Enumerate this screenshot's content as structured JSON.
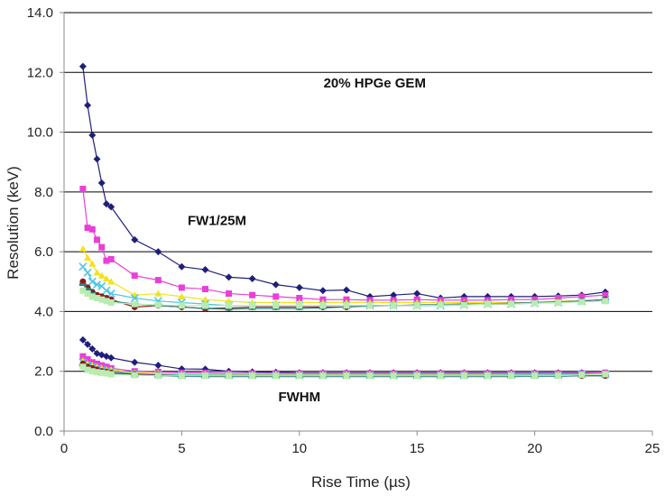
{
  "chart_data": {
    "type": "line",
    "title": "",
    "xlabel": "Rise Time (µs)",
    "ylabel": "Resolution (keV)",
    "xlim": [
      0,
      25
    ],
    "ylim": [
      0,
      14
    ],
    "xticks": [
      0,
      5,
      10,
      15,
      20,
      25
    ],
    "yticks": [
      0,
      2,
      4,
      6,
      8,
      10,
      12,
      14
    ],
    "xtick_labels": [
      "0",
      "5",
      "10",
      "15",
      "20",
      "25"
    ],
    "ytick_labels": [
      "0.0",
      "2.0",
      "4.0",
      "6.0",
      "8.0",
      "10.0",
      "12.0",
      "14.0"
    ],
    "grid": "horizontal",
    "legend": "none",
    "annotations": [
      {
        "text": "20%  HPGe GEM",
        "x": 13.2,
        "y": 11.5
      },
      {
        "text": "FW1/25M",
        "x": 6.5,
        "y": 6.9
      },
      {
        "text": "FWHM",
        "x": 10.0,
        "y": 1.0
      }
    ],
    "series": [
      {
        "group": "FW1/25M",
        "color": "#1f1f7a",
        "marker": "diamond",
        "x": [
          0.8,
          1.0,
          1.2,
          1.4,
          1.6,
          1.8,
          2.0,
          3.0,
          4.0,
          5.0,
          6.0,
          7.0,
          8.0,
          9.0,
          10.0,
          11.0,
          12.0,
          13.0,
          14.0,
          15.0,
          16.0,
          17.0,
          18.0,
          19.0,
          20.0,
          21.0,
          22.0,
          23.0
        ],
        "y": [
          12.2,
          10.9,
          9.9,
          9.1,
          8.3,
          7.6,
          7.5,
          6.4,
          6.0,
          5.5,
          5.4,
          5.15,
          5.1,
          4.9,
          4.8,
          4.7,
          4.72,
          4.5,
          4.55,
          4.6,
          4.45,
          4.5,
          4.5,
          4.5,
          4.5,
          4.52,
          4.55,
          4.65
        ]
      },
      {
        "group": "FW1/25M",
        "color": "#e83fd8",
        "marker": "square",
        "x": [
          0.8,
          1.0,
          1.2,
          1.4,
          1.6,
          1.8,
          2.0,
          3.0,
          4.0,
          5.0,
          6.0,
          7.0,
          8.0,
          9.0,
          10.0,
          11.0,
          12.0,
          13.0,
          14.0,
          15.0,
          16.0,
          17.0,
          18.0,
          19.0,
          20.0,
          21.0,
          22.0,
          23.0
        ],
        "y": [
          8.1,
          6.8,
          6.75,
          6.4,
          6.15,
          5.7,
          5.75,
          5.2,
          5.05,
          4.8,
          4.75,
          4.6,
          4.55,
          4.5,
          4.45,
          4.4,
          4.4,
          4.38,
          4.38,
          4.4,
          4.38,
          4.38,
          4.38,
          4.4,
          4.4,
          4.45,
          4.5,
          4.55
        ]
      },
      {
        "group": "FW1/25M",
        "color": "#f2e21c",
        "marker": "triangle",
        "x": [
          0.8,
          1.0,
          1.2,
          1.4,
          1.6,
          1.8,
          2.0,
          3.0,
          4.0,
          5.0,
          6.0,
          7.0,
          8.0,
          9.0,
          10.0,
          11.0,
          12.0,
          13.0,
          14.0,
          15.0,
          16.0,
          17.0,
          18.0,
          19.0,
          20.0,
          21.0,
          22.0,
          23.0
        ],
        "y": [
          6.1,
          5.8,
          5.6,
          5.3,
          5.2,
          5.1,
          5.0,
          4.55,
          4.6,
          4.5,
          4.4,
          4.35,
          4.3,
          4.3,
          4.3,
          4.3,
          4.3,
          4.3,
          4.3,
          4.3,
          4.3,
          4.3,
          4.3,
          4.3,
          4.3,
          4.35,
          4.35,
          4.4
        ]
      },
      {
        "group": "FW1/25M",
        "color": "#4cc8e8",
        "marker": "x",
        "x": [
          0.8,
          1.0,
          1.2,
          1.4,
          1.6,
          1.8,
          2.0,
          3.0,
          4.0,
          5.0,
          6.0,
          7.0,
          8.0,
          9.0,
          10.0,
          11.0,
          12.0,
          13.0,
          14.0,
          15.0,
          16.0,
          17.0,
          18.0,
          19.0,
          20.0,
          21.0,
          22.0,
          23.0
        ],
        "y": [
          5.5,
          5.3,
          5.0,
          4.9,
          4.85,
          4.7,
          4.6,
          4.45,
          4.35,
          4.3,
          4.25,
          4.2,
          4.2,
          4.2,
          4.2,
          4.2,
          4.2,
          4.2,
          4.2,
          4.2,
          4.2,
          4.22,
          4.25,
          4.25,
          4.28,
          4.3,
          4.35,
          4.4
        ]
      },
      {
        "group": "FW1/25M",
        "color": "#8a1c1c",
        "marker": "circle",
        "x": [
          0.8,
          1.0,
          1.2,
          1.4,
          1.6,
          1.8,
          2.0,
          3.0,
          4.0,
          5.0,
          6.0,
          7.0,
          8.0,
          9.0,
          10.0,
          11.0,
          12.0,
          13.0,
          14.0,
          15.0,
          16.0,
          17.0,
          18.0,
          19.0,
          20.0,
          21.0,
          22.0,
          23.0
        ],
        "y": [
          5.0,
          4.8,
          4.65,
          4.55,
          4.5,
          4.45,
          4.4,
          4.15,
          4.2,
          4.15,
          4.1,
          4.12,
          4.15,
          4.15,
          4.15,
          4.15,
          4.15,
          4.2,
          4.2,
          4.2,
          4.22,
          4.25,
          4.25,
          4.25,
          4.3,
          4.32,
          4.35,
          4.4
        ]
      },
      {
        "group": "FW1/25M",
        "color": "#2f7d7d",
        "marker": "dash",
        "x": [
          0.8,
          1.0,
          1.2,
          1.4,
          1.6,
          1.8,
          2.0,
          3.0,
          4.0,
          5.0,
          6.0,
          7.0,
          8.0,
          9.0,
          10.0,
          11.0,
          12.0,
          13.0,
          14.0,
          15.0,
          16.0,
          17.0,
          18.0,
          19.0,
          20.0,
          21.0,
          22.0,
          23.0
        ],
        "y": [
          4.9,
          4.75,
          4.6,
          4.5,
          4.45,
          4.4,
          4.35,
          4.25,
          4.2,
          4.15,
          4.1,
          4.08,
          4.1,
          4.1,
          4.1,
          4.12,
          4.15,
          4.18,
          4.2,
          4.22,
          4.24,
          4.25,
          4.26,
          4.28,
          4.3,
          4.32,
          4.35,
          4.4
        ]
      },
      {
        "group": "FW1/25M",
        "color": "#b8ecb0",
        "marker": "square",
        "x": [
          0.8,
          1.0,
          1.2,
          1.4,
          1.6,
          1.8,
          2.0,
          3.0,
          4.0,
          5.0,
          6.0,
          7.0,
          8.0,
          9.0,
          10.0,
          11.0,
          12.0,
          13.0,
          14.0,
          15.0,
          16.0,
          17.0,
          18.0,
          19.0,
          20.0,
          21.0,
          22.0,
          23.0
        ],
        "y": [
          4.7,
          4.6,
          4.5,
          4.45,
          4.4,
          4.35,
          4.3,
          4.25,
          4.22,
          4.2,
          4.2,
          4.2,
          4.2,
          4.2,
          4.2,
          4.2,
          4.2,
          4.2,
          4.2,
          4.2,
          4.22,
          4.22,
          4.25,
          4.25,
          4.28,
          4.3,
          4.32,
          4.35
        ]
      },
      {
        "group": "FWHM",
        "color": "#1f1f7a",
        "marker": "diamond",
        "x": [
          0.8,
          1.0,
          1.2,
          1.4,
          1.6,
          1.8,
          2.0,
          3.0,
          4.0,
          5.0,
          6.0,
          7.0,
          8.0,
          9.0,
          10.0,
          11.0,
          12.0,
          13.0,
          14.0,
          15.0,
          16.0,
          17.0,
          18.0,
          19.0,
          20.0,
          21.0,
          22.0,
          23.0
        ],
        "y": [
          3.05,
          2.9,
          2.75,
          2.6,
          2.55,
          2.5,
          2.45,
          2.3,
          2.2,
          2.08,
          2.07,
          2.0,
          1.98,
          1.97,
          1.95,
          1.95,
          1.95,
          1.95,
          1.95,
          1.95,
          1.95,
          1.95,
          1.95,
          1.95,
          1.95,
          1.95,
          1.95,
          1.95
        ]
      },
      {
        "group": "FWHM",
        "color": "#e83fd8",
        "marker": "square",
        "x": [
          0.8,
          1.0,
          1.2,
          1.4,
          1.6,
          1.8,
          2.0,
          3.0,
          4.0,
          5.0,
          6.0,
          7.0,
          8.0,
          9.0,
          10.0,
          11.0,
          12.0,
          13.0,
          14.0,
          15.0,
          16.0,
          17.0,
          18.0,
          19.0,
          20.0,
          21.0,
          22.0,
          23.0
        ],
        "y": [
          2.5,
          2.4,
          2.3,
          2.25,
          2.2,
          2.15,
          2.1,
          2.0,
          1.98,
          1.95,
          1.95,
          1.93,
          1.93,
          1.93,
          1.93,
          1.93,
          1.93,
          1.93,
          1.93,
          1.93,
          1.93,
          1.93,
          1.93,
          1.93,
          1.93,
          1.93,
          1.93,
          1.95
        ]
      },
      {
        "group": "FWHM",
        "color": "#f2e21c",
        "marker": "triangle",
        "x": [
          0.8,
          1.0,
          1.2,
          1.4,
          1.6,
          1.8,
          2.0,
          3.0,
          4.0,
          5.0,
          6.0,
          7.0,
          8.0,
          9.0,
          10.0,
          11.0,
          12.0,
          13.0,
          14.0,
          15.0,
          16.0,
          17.0,
          18.0,
          19.0,
          20.0,
          21.0,
          22.0,
          23.0
        ],
        "y": [
          2.35,
          2.25,
          2.2,
          2.15,
          2.1,
          2.05,
          2.05,
          1.95,
          1.93,
          1.9,
          1.9,
          1.9,
          1.9,
          1.9,
          1.9,
          1.9,
          1.9,
          1.9,
          1.9,
          1.9,
          1.9,
          1.9,
          1.9,
          1.9,
          1.9,
          1.9,
          1.9,
          1.92
        ]
      },
      {
        "group": "FWHM",
        "color": "#4cc8e8",
        "marker": "x",
        "x": [
          0.8,
          1.0,
          1.2,
          1.4,
          1.6,
          1.8,
          2.0,
          3.0,
          4.0,
          5.0,
          6.0,
          7.0,
          8.0,
          9.0,
          10.0,
          11.0,
          12.0,
          13.0,
          14.0,
          15.0,
          16.0,
          17.0,
          18.0,
          19.0,
          20.0,
          21.0,
          22.0,
          23.0
        ],
        "y": [
          2.3,
          2.2,
          2.15,
          2.1,
          2.05,
          2.0,
          2.0,
          1.92,
          1.9,
          1.88,
          1.88,
          1.87,
          1.87,
          1.87,
          1.87,
          1.87,
          1.87,
          1.87,
          1.87,
          1.87,
          1.87,
          1.87,
          1.87,
          1.88,
          1.88,
          1.88,
          1.9,
          1.9
        ]
      },
      {
        "group": "FWHM",
        "color": "#8a1c1c",
        "marker": "circle",
        "x": [
          0.8,
          1.0,
          1.2,
          1.4,
          1.6,
          1.8,
          2.0,
          3.0,
          4.0,
          5.0,
          6.0,
          7.0,
          8.0,
          9.0,
          10.0,
          11.0,
          12.0,
          13.0,
          14.0,
          15.0,
          16.0,
          17.0,
          18.0,
          19.0,
          20.0,
          21.0,
          22.0,
          23.0
        ],
        "y": [
          2.25,
          2.15,
          2.1,
          2.05,
          2.0,
          1.98,
          1.95,
          1.9,
          1.87,
          1.85,
          1.85,
          1.85,
          1.85,
          1.85,
          1.85,
          1.85,
          1.85,
          1.85,
          1.85,
          1.85,
          1.85,
          1.85,
          1.85,
          1.85,
          1.85,
          1.85,
          1.85,
          1.85
        ]
      },
      {
        "group": "FWHM",
        "color": "#2f7d7d",
        "marker": "dash",
        "x": [
          0.8,
          1.0,
          1.2,
          1.4,
          1.6,
          1.8,
          2.0,
          3.0,
          4.0,
          5.0,
          6.0,
          7.0,
          8.0,
          9.0,
          10.0,
          11.0,
          12.0,
          13.0,
          14.0,
          15.0,
          16.0,
          17.0,
          18.0,
          19.0,
          20.0,
          21.0,
          22.0,
          23.0
        ],
        "y": [
          2.2,
          2.1,
          2.05,
          2.0,
          1.97,
          1.95,
          1.93,
          1.88,
          1.85,
          1.83,
          1.82,
          1.82,
          1.82,
          1.82,
          1.82,
          1.82,
          1.82,
          1.82,
          1.82,
          1.82,
          1.82,
          1.82,
          1.82,
          1.82,
          1.83,
          1.83,
          1.85,
          1.85
        ]
      },
      {
        "group": "FWHM",
        "color": "#b8ecb0",
        "marker": "square",
        "x": [
          0.8,
          1.0,
          1.2,
          1.4,
          1.6,
          1.8,
          2.0,
          3.0,
          4.0,
          5.0,
          6.0,
          7.0,
          8.0,
          9.0,
          10.0,
          11.0,
          12.0,
          13.0,
          14.0,
          15.0,
          16.0,
          17.0,
          18.0,
          19.0,
          20.0,
          21.0,
          22.0,
          23.0
        ],
        "y": [
          2.15,
          2.05,
          2.0,
          1.97,
          1.95,
          1.93,
          1.9,
          1.87,
          1.85,
          1.85,
          1.85,
          1.85,
          1.85,
          1.85,
          1.85,
          1.85,
          1.85,
          1.85,
          1.85,
          1.85,
          1.85,
          1.85,
          1.85,
          1.85,
          1.85,
          1.85,
          1.88,
          1.9
        ]
      }
    ]
  }
}
